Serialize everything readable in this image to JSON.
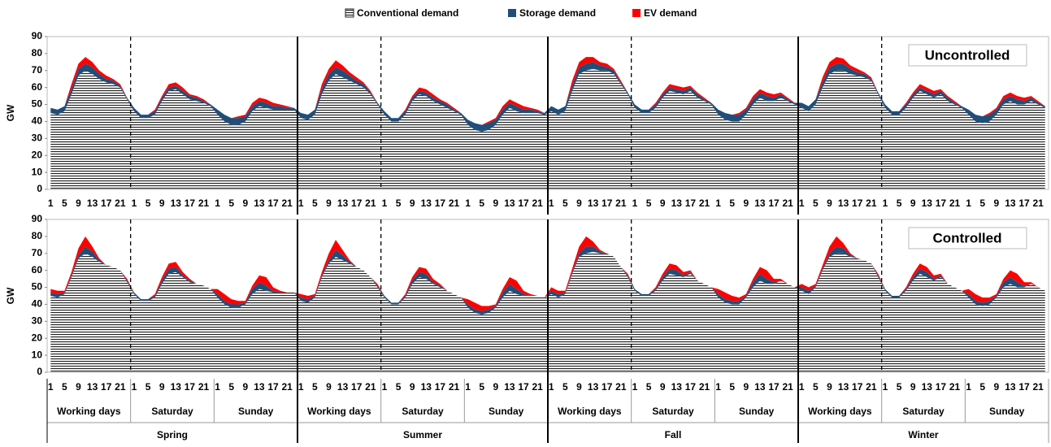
{
  "chart_data": [
    {
      "type": "area",
      "stacked": true,
      "annotation": "Uncontrolled",
      "y_label": "GW",
      "ylim": [
        0,
        90
      ],
      "yticks": [
        0,
        10,
        20,
        30,
        40,
        50,
        60,
        70,
        80,
        90
      ],
      "categories": [
        "1",
        null,
        "5",
        null,
        "9",
        null,
        "13",
        null,
        "17",
        null,
        "21",
        null,
        "1",
        null,
        "5",
        null,
        "9",
        null,
        "13",
        null,
        "17",
        null,
        "21",
        null,
        "1",
        null,
        "5",
        null,
        "9",
        null,
        "13",
        null,
        "17",
        null,
        "21",
        null,
        "1",
        null,
        "5",
        null,
        "9",
        null,
        "13",
        null,
        "17",
        null,
        "21",
        null,
        "1",
        null,
        "5",
        null,
        "9",
        null,
        "13",
        null,
        "17",
        null,
        "21",
        null,
        "1",
        null,
        "5",
        null,
        "9",
        null,
        "13",
        null,
        "17",
        null,
        "21",
        null,
        "1",
        null,
        "5",
        null,
        "9",
        null,
        "13",
        null,
        "17",
        null,
        "21",
        null,
        "1",
        null,
        "5",
        null,
        "9",
        null,
        "13",
        null,
        "17",
        null,
        "21",
        null,
        "1",
        null,
        "5",
        null,
        "9",
        null,
        "13",
        null,
        "17",
        null,
        "21",
        null,
        "1",
        null,
        "5",
        null,
        "9",
        null,
        "13",
        null,
        "17",
        null,
        "21",
        null,
        "1",
        null,
        "5",
        null,
        "9",
        null,
        "13",
        null,
        "17",
        null,
        "21",
        null,
        "1",
        null,
        "5",
        null,
        "9",
        null,
        "13",
        null,
        "17",
        null,
        "21",
        null
      ],
      "series": [
        {
          "name": "Conventional demand",
          "color": "#222222",
          "values": [
            45,
            44,
            46,
            56,
            67,
            70,
            68,
            65,
            63,
            62,
            60,
            53,
            46,
            42,
            42,
            44,
            52,
            58,
            59,
            56,
            53,
            52,
            51,
            49,
            44,
            40,
            38,
            38,
            40,
            46,
            49,
            48,
            47,
            47,
            47,
            47,
            42,
            41,
            44,
            56,
            64,
            68,
            66,
            64,
            62,
            60,
            56,
            50,
            44,
            40,
            40,
            44,
            52,
            56,
            55,
            52,
            50,
            48,
            46,
            44,
            38,
            35,
            34,
            35,
            38,
            44,
            48,
            46,
            45,
            45,
            45,
            44,
            46,
            44,
            46,
            58,
            68,
            70,
            71,
            70,
            70,
            68,
            62,
            56,
            48,
            45,
            45,
            48,
            54,
            58,
            57,
            56,
            58,
            54,
            52,
            50,
            44,
            41,
            40,
            40,
            44,
            50,
            54,
            52,
            52,
            54,
            52,
            50,
            48,
            46,
            50,
            60,
            68,
            70,
            70,
            68,
            67,
            66,
            64,
            56,
            48,
            44,
            44,
            48,
            54,
            58,
            56,
            54,
            56,
            52,
            50,
            48,
            44,
            40,
            39,
            40,
            44,
            50,
            52,
            50,
            50,
            52,
            50,
            48
          ]
        },
        {
          "name": "Storage demand",
          "color": "#1f4e79",
          "values": [
            3,
            3,
            3,
            3,
            4,
            4,
            4,
            3,
            2,
            2,
            1,
            1,
            2,
            2,
            2,
            2,
            2,
            2,
            2,
            2,
            2,
            2,
            1,
            1,
            3,
            4,
            4,
            4,
            3,
            3,
            3,
            3,
            2,
            2,
            1,
            1,
            3,
            3,
            3,
            3,
            4,
            4,
            4,
            3,
            2,
            2,
            1,
            1,
            2,
            2,
            2,
            2,
            2,
            2,
            2,
            2,
            2,
            2,
            1,
            1,
            3,
            4,
            4,
            4,
            3,
            3,
            3,
            3,
            2,
            2,
            1,
            1,
            3,
            3,
            3,
            3,
            4,
            4,
            4,
            3,
            2,
            2,
            1,
            1,
            2,
            2,
            2,
            2,
            2,
            2,
            2,
            2,
            2,
            2,
            1,
            1,
            3,
            4,
            4,
            4,
            3,
            3,
            3,
            3,
            2,
            2,
            1,
            1,
            3,
            3,
            3,
            3,
            4,
            4,
            4,
            3,
            2,
            2,
            1,
            1,
            2,
            2,
            2,
            2,
            2,
            2,
            2,
            2,
            2,
            2,
            1,
            1,
            3,
            4,
            4,
            4,
            3,
            3,
            3,
            3,
            2,
            2,
            1,
            1
          ]
        },
        {
          "name": "EV demand",
          "color": "#ff0000",
          "values": [
            0,
            0,
            0,
            3,
            3,
            4,
            3,
            2,
            2,
            1,
            1,
            0,
            0,
            0,
            0,
            1,
            1,
            2,
            2,
            2,
            1,
            1,
            1,
            0,
            0,
            0,
            0,
            1,
            1,
            2,
            2,
            2,
            2,
            1,
            1,
            0,
            0,
            0,
            0,
            3,
            3,
            4,
            3,
            2,
            2,
            1,
            1,
            0,
            0,
            0,
            0,
            1,
            1,
            2,
            2,
            2,
            1,
            1,
            1,
            0,
            0,
            0,
            0,
            1,
            1,
            2,
            2,
            2,
            2,
            1,
            1,
            0,
            0,
            0,
            0,
            3,
            3,
            4,
            3,
            2,
            2,
            1,
            1,
            0,
            0,
            0,
            0,
            1,
            1,
            2,
            2,
            2,
            1,
            1,
            1,
            0,
            0,
            0,
            0,
            1,
            1,
            2,
            2,
            2,
            2,
            1,
            1,
            0,
            0,
            0,
            0,
            3,
            3,
            4,
            3,
            2,
            2,
            1,
            1,
            0,
            0,
            0,
            0,
            1,
            1,
            2,
            2,
            2,
            1,
            1,
            1,
            0,
            0,
            0,
            0,
            1,
            1,
            2,
            2,
            2,
            2,
            1,
            1,
            0
          ]
        }
      ]
    },
    {
      "type": "area",
      "stacked": true,
      "annotation": "Controlled",
      "y_label": "GW",
      "ylim": [
        0,
        90
      ],
      "yticks": [
        0,
        10,
        20,
        30,
        40,
        50,
        60,
        70,
        80,
        90
      ],
      "categories": [
        "1",
        null,
        "5",
        null,
        "9",
        null,
        "13",
        null,
        "17",
        null,
        "21",
        null,
        "1",
        null,
        "5",
        null,
        "9",
        null,
        "13",
        null,
        "17",
        null,
        "21",
        null,
        "1",
        null,
        "5",
        null,
        "9",
        null,
        "13",
        null,
        "17",
        null,
        "21",
        null,
        "1",
        null,
        "5",
        null,
        "9",
        null,
        "13",
        null,
        "17",
        null,
        "21",
        null,
        "1",
        null,
        "5",
        null,
        "9",
        null,
        "13",
        null,
        "17",
        null,
        "21",
        null,
        "1",
        null,
        "5",
        null,
        "9",
        null,
        "13",
        null,
        "17",
        null,
        "21",
        null,
        "1",
        null,
        "5",
        null,
        "9",
        null,
        "13",
        null,
        "17",
        null,
        "21",
        null,
        "1",
        null,
        "5",
        null,
        "9",
        null,
        "13",
        null,
        "17",
        null,
        "21",
        null,
        "1",
        null,
        "5",
        null,
        "9",
        null,
        "13",
        null,
        "17",
        null,
        "21",
        null,
        "1",
        null,
        "5",
        null,
        "9",
        null,
        "13",
        null,
        "17",
        null,
        "21",
        null,
        "1",
        null,
        "5",
        null,
        "9",
        null,
        "13",
        null,
        "17",
        null,
        "21",
        null,
        "1",
        null,
        "5",
        null,
        "9",
        null,
        "13",
        null,
        "17",
        null,
        "21",
        null
      ],
      "series": [
        {
          "name": "Conventional demand",
          "color": "#222222",
          "values": [
            45,
            44,
            46,
            56,
            67,
            70,
            68,
            65,
            63,
            62,
            60,
            53,
            46,
            42,
            42,
            44,
            52,
            58,
            59,
            56,
            53,
            52,
            51,
            49,
            44,
            40,
            38,
            38,
            40,
            46,
            49,
            48,
            47,
            47,
            47,
            47,
            42,
            41,
            44,
            56,
            64,
            68,
            66,
            64,
            62,
            60,
            56,
            50,
            44,
            40,
            40,
            44,
            52,
            56,
            55,
            52,
            50,
            48,
            46,
            44,
            38,
            35,
            34,
            35,
            38,
            44,
            48,
            46,
            45,
            45,
            45,
            44,
            46,
            44,
            46,
            58,
            68,
            70,
            71,
            70,
            70,
            68,
            62,
            56,
            48,
            45,
            45,
            48,
            54,
            58,
            57,
            56,
            58,
            54,
            52,
            50,
            44,
            41,
            40,
            40,
            44,
            50,
            54,
            52,
            52,
            54,
            52,
            50,
            48,
            46,
            50,
            60,
            68,
            70,
            70,
            68,
            67,
            66,
            64,
            56,
            48,
            44,
            44,
            48,
            54,
            58,
            56,
            54,
            56,
            52,
            50,
            48,
            44,
            40,
            39,
            40,
            44,
            50,
            52,
            50,
            50,
            52,
            50,
            48
          ]
        },
        {
          "name": "Storage demand",
          "color": "#1f4e79",
          "values": [
            2,
            2,
            1,
            1,
            2,
            4,
            3,
            1,
            0,
            0,
            0,
            1,
            1,
            1,
            1,
            1,
            2,
            3,
            3,
            1,
            1,
            0,
            0,
            0,
            2,
            2,
            2,
            2,
            1,
            3,
            4,
            3,
            1,
            0,
            0,
            0,
            2,
            2,
            1,
            1,
            2,
            4,
            3,
            1,
            0,
            0,
            0,
            1,
            1,
            1,
            1,
            1,
            2,
            3,
            3,
            1,
            1,
            0,
            0,
            0,
            2,
            2,
            2,
            2,
            1,
            3,
            4,
            3,
            1,
            0,
            0,
            0,
            2,
            2,
            1,
            1,
            2,
            4,
            3,
            1,
            0,
            0,
            0,
            1,
            1,
            1,
            1,
            1,
            2,
            3,
            3,
            1,
            1,
            0,
            0,
            0,
            2,
            2,
            2,
            2,
            1,
            3,
            4,
            3,
            1,
            0,
            0,
            0,
            2,
            2,
            1,
            1,
            2,
            4,
            3,
            1,
            0,
            0,
            0,
            1,
            1,
            1,
            1,
            1,
            2,
            3,
            3,
            1,
            1,
            0,
            0,
            0,
            2,
            2,
            2,
            2,
            1,
            3,
            4,
            3,
            1,
            0,
            0,
            0
          ]
        },
        {
          "name": "EV demand",
          "color": "#ff0000",
          "values": [
            2,
            2,
            1,
            2,
            4,
            6,
            3,
            1,
            0,
            0,
            0,
            1,
            0,
            0,
            0,
            1,
            2,
            3,
            3,
            2,
            1,
            0,
            0,
            0,
            3,
            4,
            3,
            2,
            1,
            2,
            4,
            5,
            2,
            1,
            0,
            0,
            2,
            2,
            1,
            2,
            4,
            6,
            3,
            1,
            0,
            0,
            0,
            1,
            0,
            0,
            0,
            1,
            2,
            3,
            3,
            2,
            1,
            0,
            0,
            0,
            3,
            4,
            3,
            2,
            1,
            2,
            4,
            5,
            2,
            1,
            0,
            0,
            2,
            2,
            1,
            2,
            4,
            6,
            3,
            1,
            0,
            0,
            0,
            1,
            0,
            0,
            0,
            1,
            2,
            3,
            3,
            2,
            1,
            0,
            0,
            0,
            3,
            4,
            3,
            2,
            1,
            2,
            4,
            5,
            2,
            1,
            0,
            0,
            2,
            2,
            1,
            2,
            4,
            6,
            3,
            1,
            0,
            0,
            0,
            1,
            0,
            0,
            0,
            1,
            2,
            3,
            3,
            2,
            1,
            0,
            0,
            0,
            3,
            4,
            3,
            2,
            1,
            2,
            4,
            5,
            2,
            1,
            0,
            0
          ]
        }
      ]
    }
  ],
  "x_groups": {
    "days": [
      "Working days",
      "Saturday",
      "Sunday",
      "Working days",
      "Saturday",
      "Sunday",
      "Working days",
      "Saturday",
      "Sunday",
      "Working days",
      "Saturday",
      "Sunday"
    ],
    "seasons": [
      "Spring",
      "Summer",
      "Fall",
      "Winter"
    ]
  }
}
